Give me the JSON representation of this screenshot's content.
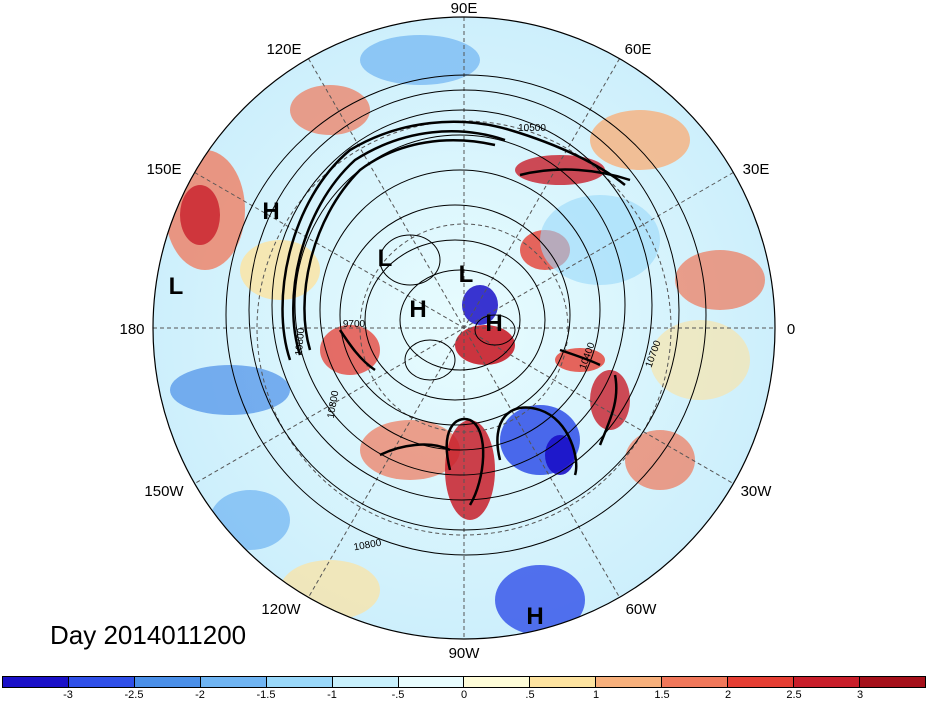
{
  "title": "Day 2014011200",
  "map": {
    "projection": "north polar stereographic",
    "longitude_labels": [
      "90E",
      "60E",
      "30E",
      "0",
      "30W",
      "60W",
      "90W",
      "120W",
      "150W",
      "180",
      "150E",
      "120E"
    ],
    "pressure_labels": [
      {
        "text": "H"
      },
      {
        "text": "L"
      },
      {
        "text": "L"
      },
      {
        "text": "L"
      },
      {
        "text": "H"
      },
      {
        "text": "H"
      },
      {
        "text": "H"
      }
    ],
    "contour_labels": [
      "10500",
      "10800",
      "9700",
      "10800",
      "10400",
      "10700",
      "10800"
    ]
  },
  "colorbar": {
    "colors": [
      "#1a10c8",
      "#2f4fe8",
      "#4a8fe8",
      "#6fb4f2",
      "#9ad8fa",
      "#c8f0fc",
      "#e8fcfe",
      "#fefcd8",
      "#fde3a0",
      "#f7b07c",
      "#f0775a",
      "#e53e33",
      "#c81e2a",
      "#a5101a"
    ],
    "ticks": [
      "-3",
      "-2.5",
      "-2",
      "-1.5",
      "-1",
      "-.5",
      "0",
      ".5",
      "1",
      "1.5",
      "2",
      "2.5",
      "3"
    ]
  },
  "colors": {
    "ocean_neutral": "#e8fcfe",
    "warm": "#e53e33",
    "cold": "#2f4fe8",
    "contour": "#000000"
  }
}
